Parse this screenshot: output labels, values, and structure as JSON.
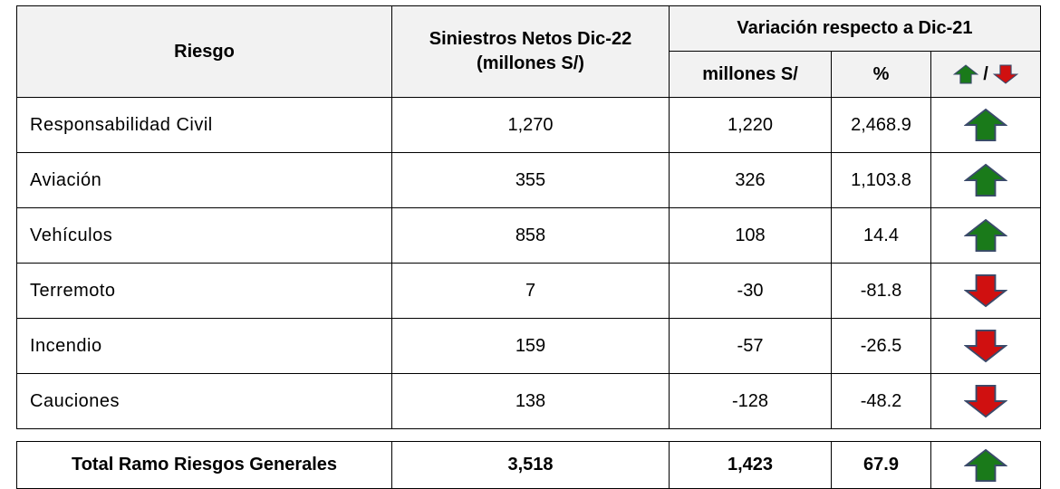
{
  "table": {
    "header": {
      "riesgo": "Riesgo",
      "siniestros": [
        "Siniestros Netos Dic-22",
        "(millones S/)"
      ],
      "variacion": "Variación respecto a Dic-21",
      "millones": "millones S/",
      "percent": "%",
      "arrow_separator": "/"
    },
    "rows": [
      [
        "Responsabilidad Civil",
        "1,270",
        "1,220",
        "2,468.9"
      ],
      [
        "Aviación",
        "355",
        "326",
        "1,103.8"
      ],
      [
        "Vehículos",
        "858",
        "108",
        "14.4"
      ],
      [
        "Terremoto",
        "7",
        "-30",
        "-81.8"
      ],
      [
        "Incendio",
        "159",
        "-57",
        "-26.5"
      ],
      [
        "Cauciones",
        "138",
        "-128",
        "-48.2"
      ]
    ],
    "total": [
      "Total Ramo Riesgos Generales",
      "3,518",
      "1,423",
      "67.9"
    ]
  }
}
